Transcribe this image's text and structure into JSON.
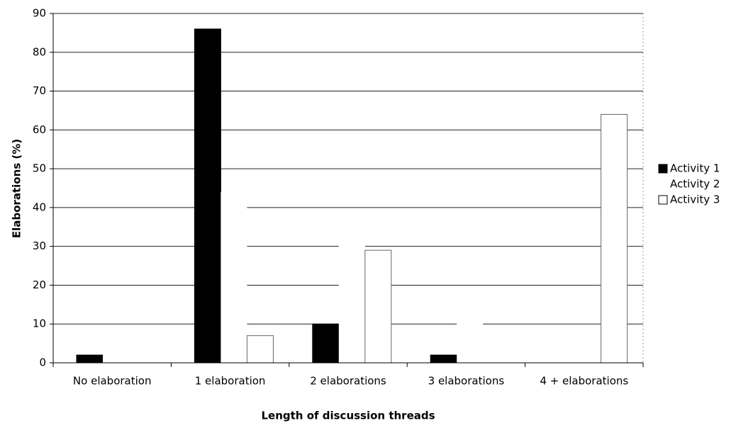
{
  "chart_data": {
    "type": "bar",
    "xlabel": "Length of discussion threads",
    "ylabel": "Elaborations (%)",
    "categories": [
      "No elaboration",
      "1 elaboration",
      "2 elaborations",
      "3 elaborations",
      "4 + elaborations"
    ],
    "series": [
      {
        "name": "Activity 1",
        "color": "#000000",
        "values": [
          2,
          86,
          10,
          2,
          0
        ]
      },
      {
        "name": "Activity 2",
        "color": "#ffffff",
        "values": [
          2,
          44,
          36,
          12,
          6
        ]
      },
      {
        "name": "Activity 3",
        "color": "#ffffff",
        "values": [
          0,
          7,
          29,
          0,
          64
        ]
      }
    ],
    "ylim": [
      0,
      90
    ],
    "yticks": [
      0,
      10,
      20,
      30,
      40,
      50,
      60,
      70,
      80,
      90
    ],
    "grid": true,
    "legend": "right"
  }
}
